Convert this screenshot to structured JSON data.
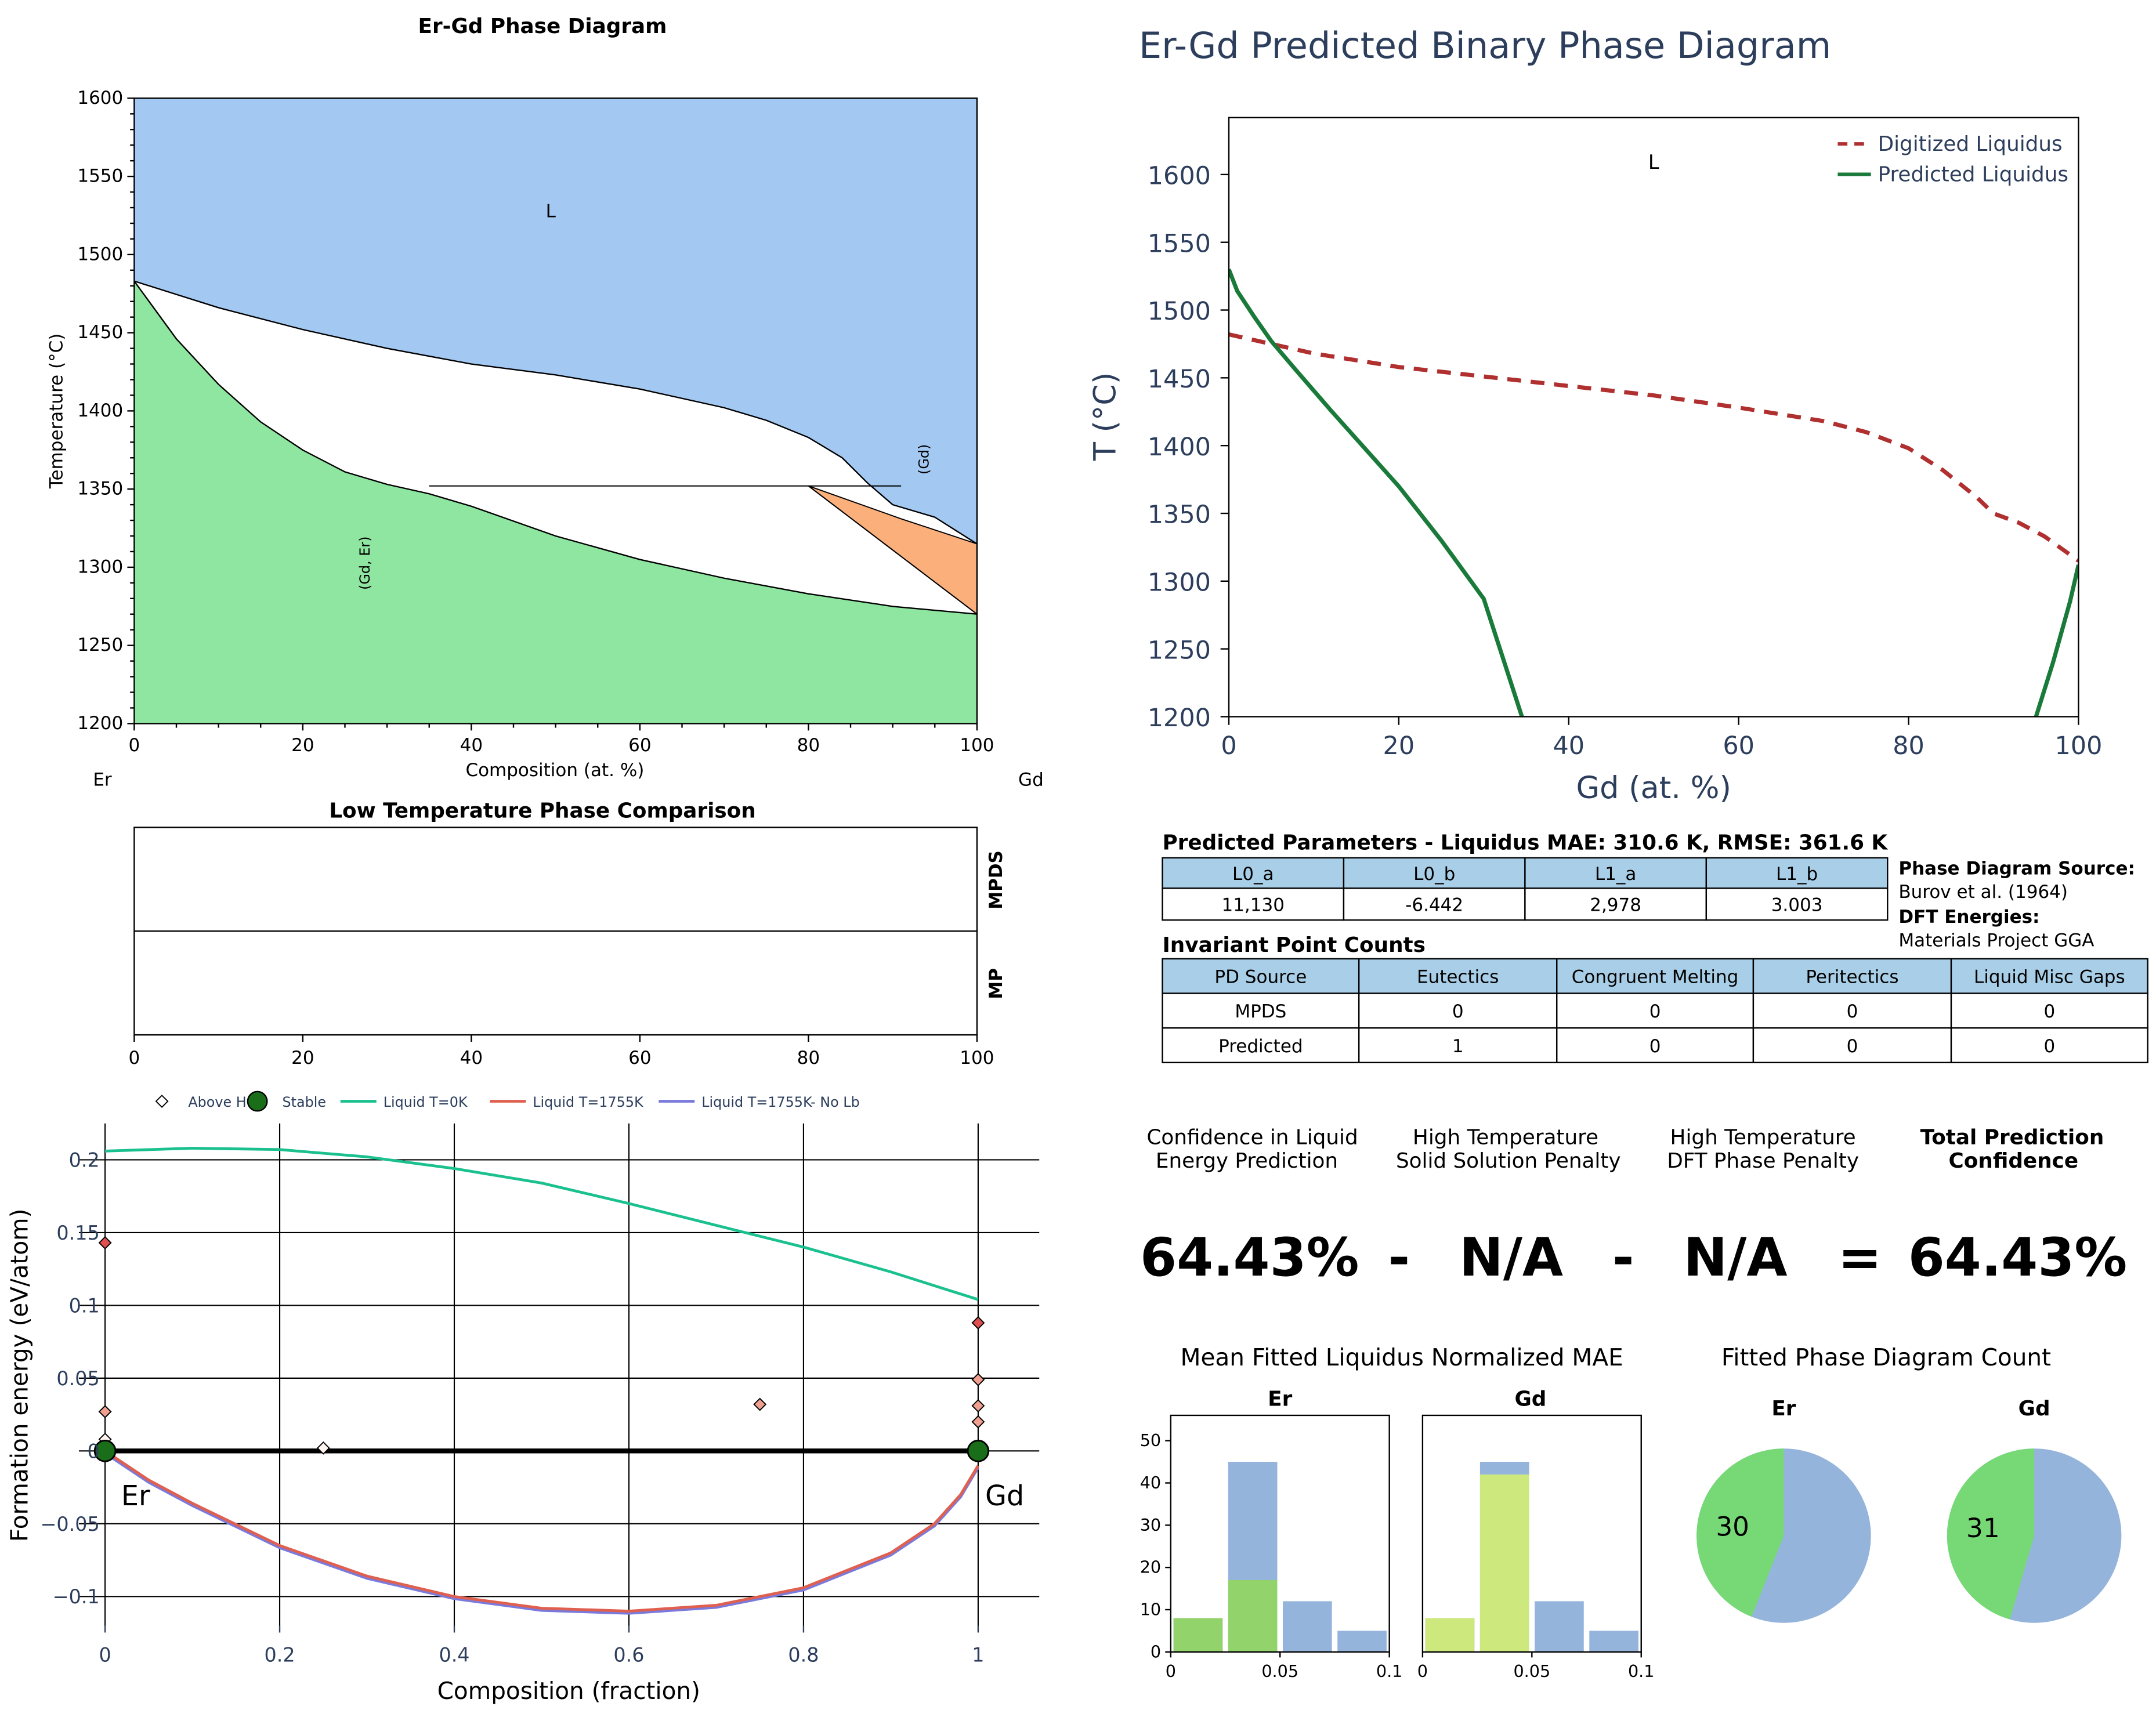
{
  "palette": {
    "liquid": "#a3c8f2",
    "solid": "#8fe6a0",
    "orange": "#fbb07c",
    "digitized": "#b03030",
    "predicted": "#1a7a3a",
    "table_header": "#a9cfe8",
    "bar_blue": "#95b4dc",
    "bar_green": "#92d36c",
    "bar_lime": "#cde87c",
    "pie_green": "#77d975",
    "pie_blue": "#95b4dc",
    "hull_green": "#1a6e1a",
    "liq0": "#1ac08e",
    "liq1755": "#e06050",
    "liqnolb": "#7a7add",
    "pred_title": "#2c3e5c"
  },
  "phase_diagram": {
    "title": "Er-Gd Phase Diagram",
    "xlabel": "Composition (at. %)",
    "ylabel": "Temperature (°C)",
    "left_element": "Er",
    "right_element": "Gd",
    "xlim": [
      0,
      100
    ],
    "ylim": [
      1200,
      1600
    ],
    "xticks": [
      0,
      20,
      40,
      60,
      80,
      100
    ],
    "yticks": [
      1200,
      1250,
      1300,
      1350,
      1400,
      1450,
      1500,
      1550,
      1600
    ],
    "region_labels": {
      "liquid": "L",
      "gd": "(Gd)",
      "gd_er": "(Gd, Er)"
    },
    "liquidus": [
      [
        0,
        1483
      ],
      [
        10,
        1466
      ],
      [
        20,
        1452
      ],
      [
        30,
        1440
      ],
      [
        40,
        1430
      ],
      [
        50,
        1423
      ],
      [
        60,
        1414
      ],
      [
        70,
        1402
      ],
      [
        75,
        1394
      ],
      [
        80,
        1383
      ],
      [
        84,
        1370
      ],
      [
        87,
        1354
      ],
      [
        90,
        1340
      ],
      [
        95,
        1332
      ],
      [
        100,
        1315
      ]
    ],
    "solidus": [
      [
        0,
        1483
      ],
      [
        5,
        1446
      ],
      [
        10,
        1417
      ],
      [
        15,
        1393
      ],
      [
        20,
        1375
      ],
      [
        25,
        1361
      ],
      [
        30,
        1353
      ],
      [
        35,
        1347
      ],
      [
        40,
        1339
      ],
      [
        50,
        1320
      ],
      [
        60,
        1305
      ],
      [
        70,
        1293
      ],
      [
        80,
        1283
      ],
      [
        90,
        1275
      ],
      [
        100,
        1270
      ]
    ],
    "eutectic_line": {
      "T": 1352,
      "x1": 35,
      "x2": 91
    },
    "orange_region": [
      [
        80,
        1352
      ],
      [
        91,
        1331
      ],
      [
        100,
        1315
      ],
      [
        100,
        1270
      ]
    ]
  },
  "lowtemp": {
    "title": "Low Temperature Phase Comparison",
    "rows": [
      "MPDS",
      "MP"
    ],
    "xticks": [
      0,
      20,
      40,
      60,
      80,
      100
    ]
  },
  "hull": {
    "legend": [
      "Above Hull",
      "Stable",
      "Liquid T=0K",
      "Liquid T=1755K",
      "Liquid T=1755K- No Lb"
    ],
    "xlabel": "Composition (fraction)",
    "ylabel": "Formation energy (eV/atom)",
    "xlim": [
      -0.03,
      1.07
    ],
    "ylim": [
      -0.12,
      0.225
    ],
    "xticks": [
      "0",
      "0.2",
      "0.4",
      "0.6",
      "0.8",
      "1"
    ],
    "xtick_values": [
      0,
      0.2,
      0.4,
      0.6,
      0.8,
      1
    ],
    "yticks": [
      "−0.1",
      "−0.05",
      "0",
      "0.05",
      "0.1",
      "0.15",
      "0.2"
    ],
    "ytick_values": [
      -0.1,
      -0.05,
      0,
      0.05,
      0.1,
      0.15,
      0.2
    ],
    "labels": {
      "left": "Er",
      "right": "Gd"
    },
    "liquid_0K": [
      [
        0,
        0.206
      ],
      [
        0.1,
        0.208
      ],
      [
        0.2,
        0.207
      ],
      [
        0.3,
        0.202
      ],
      [
        0.4,
        0.194
      ],
      [
        0.5,
        0.184
      ],
      [
        0.6,
        0.17
      ],
      [
        0.7,
        0.155
      ],
      [
        0.8,
        0.14
      ],
      [
        0.9,
        0.123
      ],
      [
        1.0,
        0.104
      ]
    ],
    "liquid_1755": [
      [
        0,
        0
      ],
      [
        0.05,
        -0.02
      ],
      [
        0.1,
        -0.036
      ],
      [
        0.2,
        -0.065
      ],
      [
        0.3,
        -0.086
      ],
      [
        0.4,
        -0.1
      ],
      [
        0.5,
        -0.108
      ],
      [
        0.6,
        -0.11
      ],
      [
        0.7,
        -0.106
      ],
      [
        0.8,
        -0.094
      ],
      [
        0.9,
        -0.07
      ],
      [
        0.95,
        -0.05
      ],
      [
        0.98,
        -0.03
      ],
      [
        1.0,
        -0.01
      ]
    ],
    "above_hull": [
      [
        0,
        0.143
      ],
      [
        0,
        0.027
      ],
      [
        0,
        0.008
      ],
      [
        0.25,
        0.002
      ],
      [
        0.75,
        0.032
      ],
      [
        1,
        0.088
      ],
      [
        1,
        0.049
      ],
      [
        1,
        0.031
      ],
      [
        1,
        0.02
      ]
    ],
    "stable": [
      [
        0,
        0
      ],
      [
        1,
        0
      ]
    ]
  },
  "predicted": {
    "title": "Er-Gd Predicted Binary Phase Diagram",
    "xlabel": "Gd (at. %)",
    "ylabel": "T (°C)",
    "xlim": [
      0,
      100
    ],
    "ylim": [
      1200,
      1642
    ],
    "xticks": [
      0,
      20,
      40,
      60,
      80,
      100
    ],
    "yticks": [
      1200,
      1250,
      1300,
      1350,
      1400,
      1450,
      1500,
      1550,
      1600
    ],
    "legend": [
      "Digitized Liquidus",
      "Predicted Liquidus"
    ],
    "region_label": "L",
    "digitized": [
      [
        0,
        1482
      ],
      [
        10,
        1468
      ],
      [
        20,
        1458
      ],
      [
        30,
        1451
      ],
      [
        40,
        1444
      ],
      [
        50,
        1437
      ],
      [
        60,
        1428
      ],
      [
        70,
        1418
      ],
      [
        75,
        1410
      ],
      [
        80,
        1398
      ],
      [
        84,
        1382
      ],
      [
        88,
        1362
      ],
      [
        90,
        1350
      ],
      [
        93,
        1343
      ],
      [
        96,
        1333
      ],
      [
        100,
        1315
      ]
    ],
    "predicted_left": [
      [
        0,
        1530
      ],
      [
        1,
        1514
      ],
      [
        3,
        1495
      ],
      [
        5,
        1477
      ],
      [
        8,
        1455
      ],
      [
        12,
        1426
      ],
      [
        16,
        1398
      ],
      [
        20,
        1370
      ],
      [
        25,
        1330
      ],
      [
        30,
        1287
      ],
      [
        34.5,
        1200
      ]
    ],
    "predicted_right": [
      [
        95,
        1200
      ],
      [
        97,
        1240
      ],
      [
        99,
        1285
      ],
      [
        100,
        1312
      ]
    ]
  },
  "params": {
    "title": "Predicted Parameters - Liquidus MAE: 310.6 K, RMSE: 361.6 K",
    "headers": [
      "L0_a",
      "L0_b",
      "L1_a",
      "L1_b"
    ],
    "values": [
      "11,130",
      "-6.442",
      "2,978",
      "3.003"
    ]
  },
  "sources": {
    "pd_label": "Phase Diagram Source:",
    "pd_value": "Burov et al. (1964)",
    "dft_label": "DFT Energies:",
    "dft_value": "Materials Project GGA"
  },
  "invariants": {
    "title": "Invariant Point Counts",
    "headers": [
      "PD Source",
      "Eutectics",
      "Congruent Melting",
      "Peritectics",
      "Liquid Misc Gaps"
    ],
    "rows": [
      [
        "MPDS",
        "0",
        "0",
        "0",
        "0"
      ],
      [
        "Predicted",
        "1",
        "0",
        "0",
        "0"
      ]
    ]
  },
  "confidence": {
    "col1": [
      "Confidence in Liquid",
      "Energy Prediction"
    ],
    "col2": [
      "High Temperature",
      "Solid Solution Penalty"
    ],
    "col3": [
      "High Temperature",
      "DFT Phase Penalty"
    ],
    "col4": [
      "Total Prediction",
      "Confidence"
    ],
    "value1": "64.43%",
    "minus1": "-",
    "value2": "N/A",
    "minus2": "-",
    "value3": "N/A",
    "equals": "=",
    "value4": "64.43%"
  },
  "mae": {
    "title": "Mean Fitted Liquidus Normalized MAE",
    "panels": [
      "Er",
      "Gd"
    ],
    "yticks": [
      0,
      10,
      20,
      30,
      40,
      50
    ],
    "ylim": [
      0,
      56
    ],
    "xticks": [
      "0",
      "0.05",
      "0.1"
    ],
    "bins": [
      0,
      0.025,
      0.05,
      0.075,
      0.1
    ],
    "er_blue": [
      8,
      45,
      12,
      5
    ],
    "er_green": [
      8,
      17,
      0,
      0
    ],
    "gd_blue": [
      8,
      45,
      12,
      5
    ],
    "gd_lime": [
      8,
      42,
      0,
      0
    ]
  },
  "pies": {
    "title": "Fitted Phase Diagram Count",
    "er": {
      "label": "Er",
      "count": "30",
      "fraction": 0.44
    },
    "gd": {
      "label": "Gd",
      "count": "31",
      "fraction": 0.455
    }
  }
}
